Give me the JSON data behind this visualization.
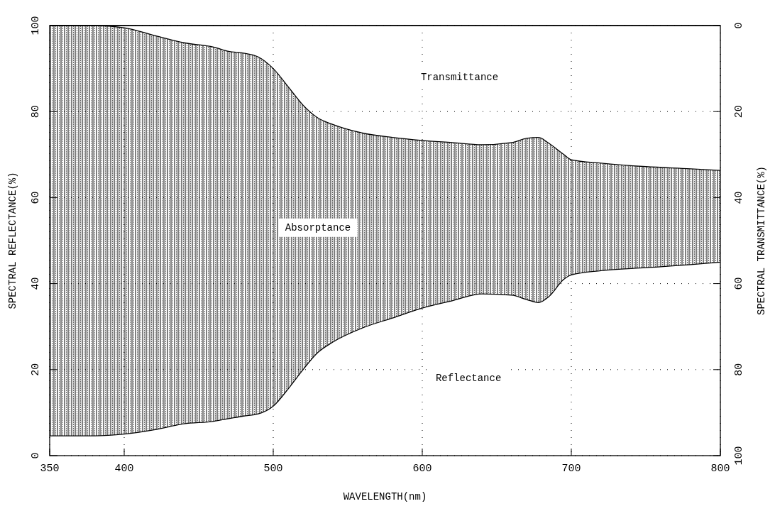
{
  "chart_data": {
    "type": "area",
    "stacked": true,
    "xlabel": "WAVELENGTH(nm)",
    "ylabel": "SPECTRAL REFLECTANCE(%)",
    "y2label": "SPECTRAL TRANSMITTANCE(%)",
    "x": [
      350,
      380,
      400,
      420,
      440,
      460,
      470,
      480,
      490,
      500,
      510,
      520,
      530,
      540,
      560,
      580,
      600,
      620,
      640,
      660,
      670,
      678,
      685,
      695,
      700,
      720,
      750,
      780,
      800
    ],
    "xlim": [
      350,
      800
    ],
    "xticks": [
      350,
      400,
      500,
      600,
      700,
      800
    ],
    "ylim": [
      0,
      100
    ],
    "yticks": [
      0,
      20,
      40,
      60,
      80,
      100
    ],
    "y2lim": [
      100,
      0
    ],
    "y2ticks": [
      0,
      20,
      40,
      60,
      80,
      100
    ],
    "grid": true,
    "series": [
      {
        "name": "Reflectance",
        "color": "#ffffff",
        "values": [
          4.6,
          4.6,
          5,
          6,
          7.4,
          8,
          8.6,
          9.2,
          9.7,
          11.5,
          15.5,
          20,
          24,
          26.4,
          29.7,
          32,
          34.3,
          36,
          37.6,
          37.3,
          36.3,
          35.6,
          37,
          41,
          42,
          43,
          43.7,
          44.4,
          45
        ]
      },
      {
        "name": "Absorptance",
        "color": "#000000",
        "values": [
          95.4,
          95.4,
          94.5,
          91.7,
          88.6,
          87,
          85.4,
          84.4,
          83,
          78.5,
          70.3,
          61.5,
          54.5,
          50.6,
          45.3,
          42,
          39,
          36.8,
          34.7,
          35.5,
          37.5,
          38.4,
          35.6,
          29,
          26.8,
          25,
          23.5,
          22.3,
          21.3
        ]
      },
      {
        "name": "Transmittance",
        "color": "#ffffff",
        "values": [
          0,
          0,
          0.5,
          2.3,
          4,
          5,
          6,
          6.4,
          7.3,
          10,
          14.2,
          18.5,
          21.5,
          23,
          25,
          26,
          26.7,
          27.2,
          27.7,
          27.2,
          26.2,
          26,
          27.4,
          30,
          31.2,
          32,
          32.8,
          33.3,
          33.7
        ]
      }
    ]
  }
}
